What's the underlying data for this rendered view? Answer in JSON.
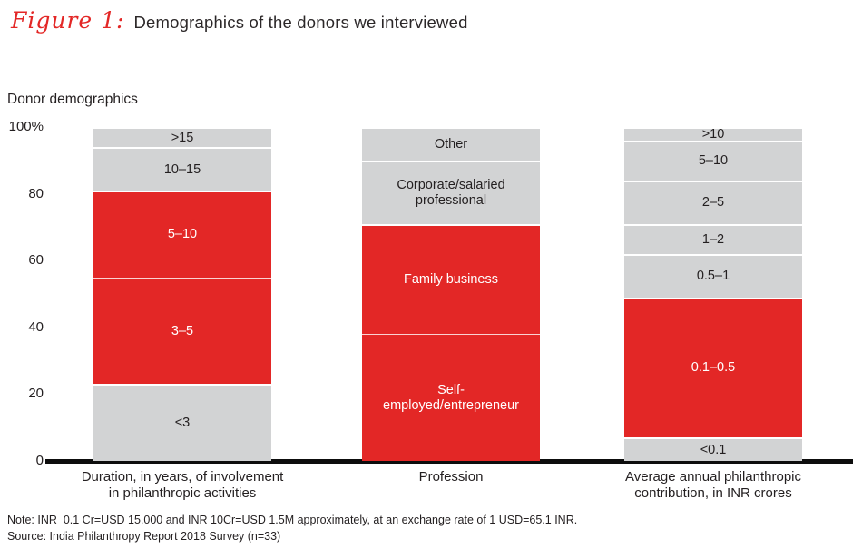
{
  "title": {
    "figure_label": "Figure 1:",
    "text": "Demographics of the donors we interviewed"
  },
  "chart_label": "Donor demographics",
  "colors": {
    "red": "#e32726",
    "gray": "#d2d3d4",
    "dark_text": "#231f20",
    "axis": "#0d0d0d"
  },
  "footer": {
    "note": "Note: INR  0.1 Cr=USD 15,000 and INR 10Cr=USD 1.5M approximately, at an exchange rate of 1 USD=65.1 INR.",
    "source": "Source: India Philanthropy Report 2018 Survey (n=33)"
  },
  "chart_data": {
    "type": "bar",
    "stacked": true,
    "value_unit": "percent of donors",
    "ylim": [
      0,
      100
    ],
    "grid": false,
    "legend": false,
    "y_axis_ticks": [
      {
        "value": 100,
        "label": "100%"
      },
      {
        "value": 80,
        "label": "80"
      },
      {
        "value": 60,
        "label": "60"
      },
      {
        "value": 40,
        "label": "40"
      },
      {
        "value": 20,
        "label": "20"
      },
      {
        "value": 0,
        "label": "0"
      }
    ],
    "bars": [
      {
        "name": "duration",
        "axis_label_lines": [
          "Duration, in years, of involvement",
          "in philanthropic activities"
        ],
        "segments_bottom_to_top": [
          {
            "label": "<3",
            "value": 23,
            "color": "gray"
          },
          {
            "label": "3–5",
            "value": 32,
            "color": "red"
          },
          {
            "label": "5–10",
            "value": 26,
            "color": "red"
          },
          {
            "label": "10–15",
            "value": 13,
            "color": "gray"
          },
          {
            "label": ">15",
            "value": 6,
            "color": "gray"
          }
        ]
      },
      {
        "name": "profession",
        "axis_label_lines": [
          "Profession"
        ],
        "segments_bottom_to_top": [
          {
            "label": "Self-employed/entrepreneur",
            "value": 38,
            "color": "red"
          },
          {
            "label": "Family business",
            "value": 33,
            "color": "red"
          },
          {
            "label": "Corporate/salaried professional",
            "value": 19,
            "color": "gray"
          },
          {
            "label": "Other",
            "value": 10,
            "color": "gray"
          }
        ]
      },
      {
        "name": "contribution",
        "axis_label_lines": [
          "Average annual philanthropic",
          "contribution, in INR crores"
        ],
        "segments_bottom_to_top": [
          {
            "label": "<0.1",
            "value": 7,
            "color": "gray"
          },
          {
            "label": "0.1–0.5",
            "value": 42,
            "color": "red"
          },
          {
            "label": "0.5–1",
            "value": 13,
            "color": "gray"
          },
          {
            "label": "1–2",
            "value": 9,
            "color": "gray"
          },
          {
            "label": "2–5",
            "value": 13,
            "color": "gray"
          },
          {
            "label": "5–10",
            "value": 12,
            "color": "gray"
          },
          {
            "label": ">10",
            "value": 4,
            "color": "gray"
          }
        ]
      }
    ]
  }
}
